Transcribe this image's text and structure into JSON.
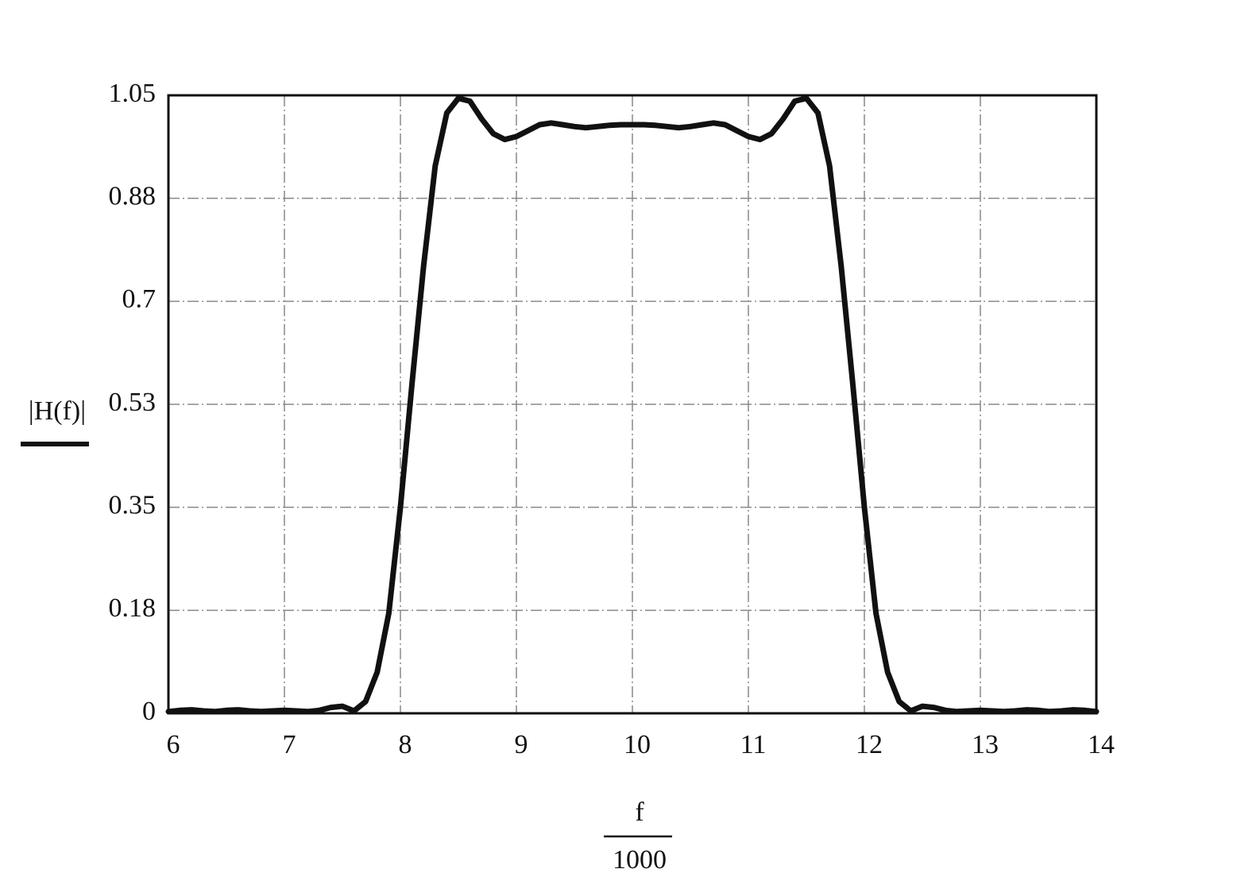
{
  "chart_data": {
    "type": "line",
    "ylabel": "|H(f)|",
    "xlabel": {
      "numerator": "f",
      "denominator": "1000"
    },
    "x": [
      6,
      6.1,
      6.2,
      6.3,
      6.4,
      6.5,
      6.6,
      6.7,
      6.8,
      6.9,
      7,
      7.1,
      7.2,
      7.3,
      7.4,
      7.5,
      7.6,
      7.7,
      7.8,
      7.9,
      8,
      8.1,
      8.2,
      8.3,
      8.4,
      8.5,
      8.6,
      8.7,
      8.8,
      8.9,
      9,
      9.1,
      9.2,
      9.3,
      9.4,
      9.5,
      9.6,
      9.7,
      9.8,
      9.9,
      10,
      10.1,
      10.2,
      10.3,
      10.4,
      10.5,
      10.6,
      10.7,
      10.8,
      10.9,
      11,
      11.1,
      11.2,
      11.3,
      11.4,
      11.5,
      11.6,
      11.7,
      11.8,
      11.9,
      12,
      12.1,
      12.2,
      12.3,
      12.4,
      12.5,
      12.6,
      12.7,
      12.8,
      12.9,
      13,
      13.1,
      13.2,
      13.3,
      13.4,
      13.5,
      13.6,
      13.7,
      13.8,
      13.9,
      14
    ],
    "values": [
      0.003,
      0.005,
      0.006,
      0.004,
      0.003,
      0.005,
      0.006,
      0.004,
      0.003,
      0.004,
      0.005,
      0.004,
      0.003,
      0.005,
      0.01,
      0.012,
      0.004,
      0.02,
      0.07,
      0.17,
      0.35,
      0.56,
      0.76,
      0.93,
      1.02,
      1.045,
      1.04,
      1.01,
      0.985,
      0.975,
      0.98,
      0.99,
      1.0,
      1.003,
      1.0,
      0.997,
      0.995,
      0.997,
      0.999,
      1.0,
      1.0,
      1.0,
      0.999,
      0.997,
      0.995,
      0.997,
      1.0,
      1.003,
      1.0,
      0.99,
      0.98,
      0.975,
      0.985,
      1.01,
      1.04,
      1.045,
      1.02,
      0.93,
      0.76,
      0.56,
      0.35,
      0.17,
      0.07,
      0.02,
      0.004,
      0.012,
      0.01,
      0.005,
      0.003,
      0.004,
      0.005,
      0.004,
      0.003,
      0.004,
      0.006,
      0.005,
      0.003,
      0.004,
      0.006,
      0.005,
      0.003
    ],
    "color": "#111111",
    "xlim": [
      6,
      14
    ],
    "xticks": [
      6,
      7,
      8,
      9,
      10,
      11,
      12,
      13,
      14
    ],
    "ylim": [
      0,
      1.05
    ],
    "yticks": [
      0,
      {
        "value": 0.175,
        "label": "0.18"
      },
      0.35,
      {
        "value": 0.525,
        "label": "0.53"
      },
      0.7,
      {
        "value": 0.875,
        "label": "0.88"
      },
      1.05
    ],
    "grid": true
  }
}
